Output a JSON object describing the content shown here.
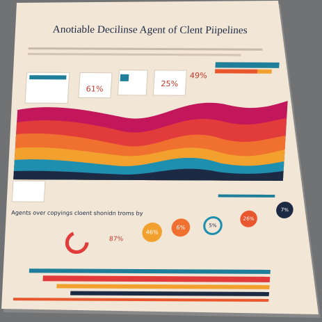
{
  "header": {
    "title": "Anotiable Decilinse Agent of Clent Piipelines"
  },
  "stat_cards": [
    {
      "value": "61%"
    },
    {
      "value": "25%"
    },
    {
      "value": "49%"
    }
  ],
  "section": {
    "title": "Agents over copyings cloent shonidn troms by"
  },
  "donuts": [
    {
      "value": "87%"
    },
    {
      "value": "46%"
    },
    {
      "value": "6%"
    },
    {
      "value": "5%"
    },
    {
      "value": "26%"
    },
    {
      "value": "7%"
    }
  ]
}
